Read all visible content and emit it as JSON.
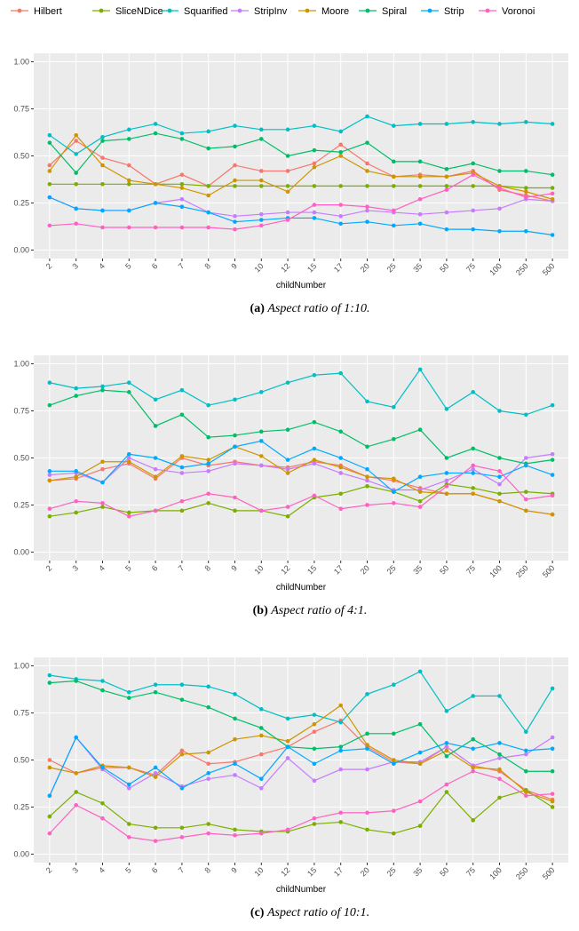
{
  "chart_data": [
    {
      "type": "line",
      "xlabel": "childNumber",
      "caption_label": "(a)",
      "caption": "Aspect ratio of 1:10.",
      "categories": [
        "2",
        "3",
        "4",
        "5",
        "6",
        "7",
        "8",
        "9",
        "10",
        "12",
        "15",
        "17",
        "20",
        "25",
        "35",
        "50",
        "75",
        "100",
        "250",
        "500"
      ],
      "ylim": [
        -0.045,
        1.045
      ],
      "yticks": [
        {
          "value": 0,
          "label": "0.00"
        },
        {
          "value": 0.25,
          "label": "0.25"
        },
        {
          "value": 0.5,
          "label": "0.50"
        },
        {
          "value": 0.75,
          "label": "0.75"
        },
        {
          "value": 1,
          "label": "1.00"
        }
      ],
      "grid": true,
      "series": [
        {
          "name": "Hilbert",
          "color": "#F8766D",
          "values": [
            0.45,
            0.58,
            0.49,
            0.45,
            0.35,
            0.4,
            0.34,
            0.45,
            0.42,
            0.42,
            0.46,
            0.56,
            0.46,
            0.39,
            0.4,
            0.39,
            0.42,
            0.32,
            0.29,
            0.26
          ]
        },
        {
          "name": "SliceNDice",
          "color": "#7CAE00",
          "values": [
            0.35,
            0.35,
            0.35,
            0.35,
            0.35,
            0.35,
            0.34,
            0.34,
            0.34,
            0.34,
            0.34,
            0.34,
            0.34,
            0.34,
            0.34,
            0.34,
            0.34,
            0.34,
            0.33,
            0.33
          ]
        },
        {
          "name": "Squarified",
          "color": "#00BFC4",
          "values": [
            0.61,
            0.51,
            0.6,
            0.64,
            0.67,
            0.62,
            0.63,
            0.66,
            0.64,
            0.64,
            0.66,
            0.63,
            0.71,
            0.66,
            0.67,
            0.67,
            0.68,
            0.67,
            0.68,
            0.67
          ]
        },
        {
          "name": "StripInv",
          "color": "#C77CFF",
          "values": [
            0.28,
            0.22,
            0.21,
            0.21,
            0.25,
            0.27,
            0.2,
            0.18,
            0.19,
            0.2,
            0.2,
            0.18,
            0.21,
            0.2,
            0.19,
            0.2,
            0.21,
            0.22,
            0.27,
            0.26
          ]
        },
        {
          "name": "Moore",
          "color": "#CD9600",
          "values": [
            0.42,
            0.61,
            0.45,
            0.37,
            0.35,
            0.33,
            0.29,
            0.37,
            0.37,
            0.31,
            0.44,
            0.5,
            0.42,
            0.39,
            0.39,
            0.39,
            0.41,
            0.34,
            0.31,
            0.27
          ]
        },
        {
          "name": "Spiral",
          "color": "#00BE67",
          "values": [
            0.57,
            0.41,
            0.58,
            0.59,
            0.62,
            0.59,
            0.54,
            0.55,
            0.59,
            0.5,
            0.53,
            0.52,
            0.57,
            0.47,
            0.47,
            0.43,
            0.46,
            0.42,
            0.42,
            0.4
          ]
        },
        {
          "name": "Strip",
          "color": "#00A9FF",
          "values": [
            0.28,
            0.22,
            0.21,
            0.21,
            0.25,
            0.23,
            0.2,
            0.15,
            0.16,
            0.17,
            0.17,
            0.14,
            0.15,
            0.13,
            0.14,
            0.11,
            0.11,
            0.1,
            0.1,
            0.08
          ]
        },
        {
          "name": "Voronoi",
          "color": "#FF61C3",
          "values": [
            0.13,
            0.14,
            0.12,
            0.12,
            0.12,
            0.12,
            0.12,
            0.11,
            0.13,
            0.16,
            0.24,
            0.24,
            0.23,
            0.21,
            0.27,
            0.32,
            0.4,
            0.33,
            0.28,
            0.3
          ]
        }
      ]
    },
    {
      "type": "line",
      "xlabel": "childNumber",
      "caption_label": "(b)",
      "caption": "Aspect ratio of 4:1.",
      "categories": [
        "2",
        "3",
        "4",
        "5",
        "6",
        "7",
        "8",
        "9",
        "10",
        "12",
        "15",
        "17",
        "20",
        "25",
        "35",
        "50",
        "75",
        "100",
        "250",
        "500"
      ],
      "ylim": [
        -0.045,
        1.045
      ],
      "yticks": [
        {
          "value": 0,
          "label": "0.00"
        },
        {
          "value": 0.25,
          "label": "0.25"
        },
        {
          "value": 0.5,
          "label": "0.50"
        },
        {
          "value": 0.75,
          "label": "0.75"
        },
        {
          "value": 1,
          "label": "1.00"
        }
      ],
      "grid": true,
      "series": [
        {
          "values": [
            0.38,
            0.39,
            0.44,
            0.47,
            0.39,
            0.5,
            0.46,
            0.48,
            0.46,
            0.45,
            0.48,
            0.46,
            0.4,
            0.38,
            0.34,
            0.31,
            0.31,
            0.27,
            0.22,
            0.2
          ]
        },
        {
          "values": [
            0.19,
            0.21,
            0.24,
            0.21,
            0.22,
            0.22,
            0.26,
            0.22,
            0.22,
            0.19,
            0.29,
            0.31,
            0.35,
            0.32,
            0.27,
            0.36,
            0.34,
            0.31,
            0.32,
            0.31
          ]
        },
        {
          "values": [
            0.9,
            0.87,
            0.88,
            0.9,
            0.81,
            0.86,
            0.78,
            0.81,
            0.85,
            0.9,
            0.94,
            0.95,
            0.8,
            0.77,
            0.97,
            0.76,
            0.85,
            0.75,
            0.73,
            0.78
          ]
        },
        {
          "values": [
            0.41,
            0.42,
            0.37,
            0.5,
            0.44,
            0.42,
            0.43,
            0.47,
            0.46,
            0.44,
            0.47,
            0.42,
            0.38,
            0.33,
            0.33,
            0.38,
            0.44,
            0.36,
            0.5,
            0.52
          ]
        },
        {
          "values": [
            0.38,
            0.4,
            0.48,
            0.48,
            0.4,
            0.51,
            0.49,
            0.56,
            0.51,
            0.42,
            0.49,
            0.45,
            0.4,
            0.39,
            0.32,
            0.31,
            0.31,
            0.27,
            0.22,
            0.2
          ]
        },
        {
          "values": [
            0.78,
            0.83,
            0.86,
            0.85,
            0.67,
            0.73,
            0.61,
            0.62,
            0.64,
            0.65,
            0.69,
            0.64,
            0.56,
            0.6,
            0.65,
            0.5,
            0.55,
            0.5,
            0.47,
            0.49
          ]
        },
        {
          "values": [
            0.43,
            0.43,
            0.37,
            0.52,
            0.5,
            0.45,
            0.47,
            0.56,
            0.59,
            0.49,
            0.55,
            0.5,
            0.44,
            0.32,
            0.4,
            0.42,
            0.42,
            0.4,
            0.46,
            0.41
          ]
        },
        {
          "values": [
            0.23,
            0.27,
            0.26,
            0.19,
            0.22,
            0.27,
            0.31,
            0.29,
            0.22,
            0.24,
            0.3,
            0.23,
            0.25,
            0.26,
            0.24,
            0.35,
            0.46,
            0.43,
            0.28,
            0.3
          ]
        }
      ]
    },
    {
      "type": "line",
      "xlabel": "childNumber",
      "caption_label": "(c)",
      "caption": "Aspect ratio of 10:1.",
      "categories": [
        "2",
        "3",
        "4",
        "5",
        "6",
        "7",
        "8",
        "9",
        "10",
        "12",
        "15",
        "17",
        "20",
        "25",
        "35",
        "50",
        "75",
        "100",
        "250",
        "500"
      ],
      "ylim": [
        -0.045,
        1.045
      ],
      "yticks": [
        {
          "value": 0,
          "label": "0.00"
        },
        {
          "value": 0.25,
          "label": "0.25"
        },
        {
          "value": 0.5,
          "label": "0.50"
        },
        {
          "value": 0.75,
          "label": "0.75"
        },
        {
          "value": 1,
          "label": "1.00"
        }
      ],
      "grid": true,
      "series": [
        {
          "values": [
            0.5,
            0.43,
            0.46,
            0.46,
            0.42,
            0.55,
            0.48,
            0.49,
            0.53,
            0.57,
            0.65,
            0.71,
            0.57,
            0.49,
            0.48,
            0.57,
            0.47,
            0.44,
            0.34,
            0.29
          ]
        },
        {
          "values": [
            0.2,
            0.33,
            0.27,
            0.16,
            0.14,
            0.14,
            0.16,
            0.13,
            0.12,
            0.12,
            0.16,
            0.17,
            0.13,
            0.11,
            0.15,
            0.33,
            0.18,
            0.3,
            0.34,
            0.25
          ]
        },
        {
          "values": [
            0.95,
            0.93,
            0.92,
            0.86,
            0.9,
            0.9,
            0.89,
            0.85,
            0.77,
            0.72,
            0.74,
            0.7,
            0.85,
            0.9,
            0.97,
            0.76,
            0.84,
            0.84,
            0.65,
            0.88
          ]
        },
        {
          "values": [
            0.31,
            0.62,
            0.45,
            0.35,
            0.43,
            0.36,
            0.4,
            0.42,
            0.35,
            0.51,
            0.39,
            0.45,
            0.45,
            0.49,
            0.49,
            0.57,
            0.47,
            0.51,
            0.53,
            0.62
          ]
        },
        {
          "values": [
            0.46,
            0.43,
            0.47,
            0.46,
            0.41,
            0.53,
            0.54,
            0.61,
            0.63,
            0.6,
            0.69,
            0.79,
            0.58,
            0.5,
            0.48,
            0.55,
            0.46,
            0.45,
            0.33,
            0.28
          ]
        },
        {
          "values": [
            0.91,
            0.92,
            0.87,
            0.83,
            0.86,
            0.82,
            0.78,
            0.72,
            0.67,
            0.57,
            0.56,
            0.57,
            0.64,
            0.64,
            0.69,
            0.52,
            0.61,
            0.53,
            0.44,
            0.44
          ]
        },
        {
          "values": [
            0.31,
            0.62,
            0.46,
            0.37,
            0.46,
            0.35,
            0.43,
            0.48,
            0.4,
            0.57,
            0.48,
            0.55,
            0.56,
            0.48,
            0.54,
            0.59,
            0.56,
            0.59,
            0.55,
            0.56
          ]
        },
        {
          "values": [
            0.11,
            0.26,
            0.19,
            0.09,
            0.07,
            0.09,
            0.11,
            0.1,
            0.11,
            0.13,
            0.19,
            0.22,
            0.22,
            0.23,
            0.28,
            0.37,
            0.44,
            0.4,
            0.31,
            0.32
          ]
        }
      ]
    }
  ]
}
